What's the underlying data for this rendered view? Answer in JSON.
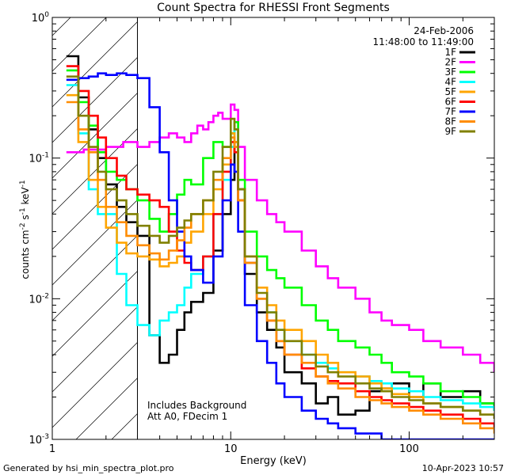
{
  "chart_data": {
    "type": "line",
    "title": "Count Spectra for RHESSI Front Segments",
    "xlabel": "Energy (keV)",
    "ylabel_main": "counts cm",
    "ylabel_units": [
      "-2",
      "-1",
      "-1"
    ],
    "ylabel_parts": [
      "counts cm",
      " s",
      " keV"
    ],
    "xscale": "log",
    "yscale": "log",
    "xlim": [
      1.0,
      300.0
    ],
    "ylim": [
      0.001,
      1.0
    ],
    "x_ticks": [
      {
        "value": 1,
        "label": "1"
      },
      {
        "value": 10,
        "label": "10"
      },
      {
        "value": 100,
        "label": "100"
      }
    ],
    "y_ticks": [
      {
        "value": 0.001,
        "base": "10",
        "exp": "-3"
      },
      {
        "value": 0.01,
        "base": "10",
        "exp": "-2"
      },
      {
        "value": 0.1,
        "base": "10",
        "exp": "-1"
      },
      {
        "value": 1,
        "base": "10",
        "exp": "0"
      }
    ],
    "hatched_region_xmax": 3.0,
    "date": "24-Feb-2006",
    "time_range": "11:48:00 to 11:49:00",
    "annotations": [
      "Includes Background",
      "Att A0, FDecim 1"
    ],
    "legend_position": "top-right",
    "series": [
      {
        "name": "1F",
        "color": "#000000",
        "x": [
          1.2,
          1.4,
          1.6,
          1.8,
          2.0,
          2.3,
          2.6,
          3.0,
          3.5,
          4.0,
          4.5,
          5.0,
          5.5,
          6.0,
          7.0,
          8.0,
          9.0,
          10.0,
          10.5,
          11.0,
          12.0,
          14.0,
          16.0,
          18.0,
          20.0,
          25.0,
          30.0,
          35.0,
          40.0,
          50.0,
          60.0,
          70.0,
          80.0,
          100.0,
          120.0,
          150.0,
          200.0,
          250.0,
          300.0
        ],
        "values": [
          0.53,
          0.27,
          0.16,
          0.1,
          0.065,
          0.045,
          0.035,
          0.028,
          0.0055,
          0.0035,
          0.004,
          0.006,
          0.008,
          0.0095,
          0.011,
          0.022,
          0.04,
          0.07,
          0.13,
          0.06,
          0.015,
          0.008,
          0.006,
          0.0045,
          0.003,
          0.0025,
          0.0018,
          0.002,
          0.0015,
          0.0016,
          0.0022,
          0.0023,
          0.0025,
          0.002,
          0.0025,
          0.002,
          0.0022,
          0.0018,
          0.0016
        ]
      },
      {
        "name": "2F",
        "color": "#ff00ff",
        "x": [
          1.2,
          1.5,
          2.0,
          2.5,
          3.0,
          3.5,
          4.0,
          4.5,
          5.0,
          5.5,
          6.0,
          6.5,
          7.0,
          7.5,
          8.0,
          8.5,
          9.0,
          10.0,
          10.5,
          11.0,
          12.0,
          14.0,
          16.0,
          18.0,
          20.0,
          25.0,
          30.0,
          35.0,
          40.0,
          50.0,
          60.0,
          70.0,
          80.0,
          100.0,
          120.0,
          150.0,
          200.0,
          250.0,
          300.0
        ],
        "values": [
          0.11,
          0.115,
          0.12,
          0.13,
          0.12,
          0.13,
          0.14,
          0.15,
          0.14,
          0.13,
          0.15,
          0.17,
          0.16,
          0.18,
          0.2,
          0.21,
          0.19,
          0.24,
          0.22,
          0.12,
          0.07,
          0.05,
          0.04,
          0.035,
          0.03,
          0.022,
          0.017,
          0.014,
          0.012,
          0.01,
          0.008,
          0.007,
          0.0065,
          0.006,
          0.005,
          0.0045,
          0.004,
          0.0035,
          0.003
        ]
      },
      {
        "name": "3F",
        "color": "#00ff00",
        "x": [
          1.2,
          1.4,
          1.6,
          1.8,
          2.0,
          2.3,
          2.6,
          3.0,
          3.5,
          4.0,
          4.5,
          5.0,
          5.5,
          6.0,
          7.0,
          8.0,
          9.0,
          10.0,
          10.5,
          11.0,
          12.0,
          14.0,
          16.0,
          18.0,
          20.0,
          25.0,
          30.0,
          35.0,
          40.0,
          50.0,
          60.0,
          70.0,
          80.0,
          100.0,
          120.0,
          150.0,
          200.0,
          250.0,
          300.0
        ],
        "values": [
          0.42,
          0.25,
          0.17,
          0.11,
          0.08,
          0.07,
          0.06,
          0.05,
          0.037,
          0.03,
          0.04,
          0.055,
          0.07,
          0.065,
          0.1,
          0.13,
          0.12,
          0.15,
          0.18,
          0.07,
          0.03,
          0.02,
          0.016,
          0.014,
          0.012,
          0.009,
          0.007,
          0.006,
          0.005,
          0.0045,
          0.004,
          0.0035,
          0.003,
          0.0028,
          0.0025,
          0.0022,
          0.002,
          0.0018,
          0.0016
        ]
      },
      {
        "name": "4F",
        "color": "#00ffff",
        "x": [
          1.2,
          1.4,
          1.6,
          1.8,
          2.0,
          2.3,
          2.6,
          3.0,
          3.5,
          4.0,
          4.5,
          5.0,
          5.5,
          6.0,
          7.0,
          8.0,
          9.0,
          10.0,
          10.5,
          11.0,
          12.0,
          14.0,
          16.0,
          18.0,
          20.0,
          25.0,
          30.0,
          35.0,
          40.0,
          50.0,
          60.0,
          70.0,
          80.0,
          100.0,
          120.0,
          150.0,
          200.0,
          250.0,
          300.0
        ],
        "values": [
          0.33,
          0.15,
          0.06,
          0.04,
          0.04,
          0.015,
          0.009,
          0.0065,
          0.0055,
          0.007,
          0.008,
          0.009,
          0.012,
          0.015,
          0.02,
          0.04,
          0.07,
          0.12,
          0.16,
          0.05,
          0.018,
          0.01,
          0.008,
          0.006,
          0.005,
          0.004,
          0.0035,
          0.0032,
          0.003,
          0.0028,
          0.0026,
          0.0025,
          0.0023,
          0.0022,
          0.002,
          0.0019,
          0.0018,
          0.0017,
          0.0016
        ]
      },
      {
        "name": "5F",
        "color": "#ffa500",
        "x": [
          1.2,
          1.4,
          1.6,
          1.8,
          2.0,
          2.3,
          2.6,
          3.0,
          3.5,
          4.0,
          4.5,
          5.0,
          5.5,
          6.0,
          7.0,
          8.0,
          9.0,
          10.0,
          10.5,
          11.0,
          12.0,
          14.0,
          16.0,
          18.0,
          20.0,
          25.0,
          30.0,
          35.0,
          40.0,
          50.0,
          60.0,
          70.0,
          80.0,
          100.0,
          120.0,
          150.0,
          200.0,
          250.0,
          300.0
        ],
        "values": [
          0.28,
          0.13,
          0.07,
          0.045,
          0.032,
          0.025,
          0.021,
          0.02,
          0.019,
          0.017,
          0.018,
          0.02,
          0.025,
          0.03,
          0.04,
          0.06,
          0.09,
          0.15,
          0.13,
          0.05,
          0.02,
          0.012,
          0.009,
          0.007,
          0.006,
          0.005,
          0.004,
          0.0035,
          0.003,
          0.0028,
          0.0025,
          0.0023,
          0.0021,
          0.002,
          0.0018,
          0.0017,
          0.0016,
          0.0015,
          0.0014
        ]
      },
      {
        "name": "6F",
        "color": "#ff0000",
        "x": [
          1.2,
          1.4,
          1.6,
          1.8,
          2.0,
          2.3,
          2.6,
          3.0,
          3.5,
          4.0,
          4.5,
          5.0,
          5.5,
          6.0,
          7.0,
          8.0,
          9.0,
          10.0,
          10.5,
          11.0,
          12.0,
          14.0,
          16.0,
          18.0,
          20.0,
          25.0,
          30.0,
          35.0,
          40.0,
          50.0,
          60.0,
          70.0,
          80.0,
          100.0,
          120.0,
          150.0,
          200.0,
          250.0,
          300.0
        ],
        "values": [
          0.45,
          0.3,
          0.2,
          0.14,
          0.1,
          0.075,
          0.06,
          0.055,
          0.05,
          0.045,
          0.03,
          0.022,
          0.018,
          0.016,
          0.02,
          0.04,
          0.08,
          0.13,
          0.11,
          0.05,
          0.018,
          0.01,
          0.007,
          0.005,
          0.004,
          0.0032,
          0.0028,
          0.0026,
          0.0025,
          0.0022,
          0.002,
          0.0019,
          0.0018,
          0.0017,
          0.0016,
          0.0015,
          0.0014,
          0.0013,
          0.0012
        ]
      },
      {
        "name": "7F",
        "color": "#0000ff",
        "x": [
          1.2,
          1.4,
          1.6,
          1.8,
          2.0,
          2.3,
          2.6,
          3.0,
          3.5,
          4.0,
          4.5,
          5.0,
          5.5,
          6.0,
          7.0,
          8.0,
          9.0,
          10.0,
          10.5,
          11.0,
          12.0,
          14.0,
          16.0,
          18.0,
          20.0,
          25.0,
          30.0,
          35.0,
          40.0,
          50.0,
          60.0,
          70.0,
          80.0,
          100.0,
          120.0,
          150.0,
          200.0,
          250.0,
          300.0
        ],
        "values": [
          0.36,
          0.37,
          0.38,
          0.4,
          0.39,
          0.4,
          0.39,
          0.37,
          0.23,
          0.11,
          0.05,
          0.03,
          0.02,
          0.016,
          0.013,
          0.02,
          0.05,
          0.09,
          0.08,
          0.03,
          0.009,
          0.005,
          0.0035,
          0.0025,
          0.002,
          0.0016,
          0.0014,
          0.0013,
          0.0012,
          0.0011,
          0.0011,
          0.001,
          0.001,
          0.001,
          0.001,
          0.001,
          0.001,
          0.001,
          0.001
        ]
      },
      {
        "name": "8F",
        "color": "#ff8c00",
        "x": [
          1.2,
          1.4,
          1.6,
          1.8,
          2.0,
          2.3,
          2.6,
          3.0,
          3.5,
          4.0,
          4.5,
          5.0,
          5.5,
          6.0,
          7.0,
          8.0,
          9.0,
          10.0,
          10.5,
          11.0,
          12.0,
          14.0,
          16.0,
          18.0,
          20.0,
          25.0,
          30.0,
          35.0,
          40.0,
          50.0,
          60.0,
          70.0,
          80.0,
          100.0,
          120.0,
          150.0,
          200.0,
          250.0,
          300.0
        ],
        "values": [
          0.25,
          0.16,
          0.11,
          0.07,
          0.045,
          0.035,
          0.028,
          0.024,
          0.021,
          0.019,
          0.022,
          0.026,
          0.032,
          0.04,
          0.05,
          0.07,
          0.1,
          0.14,
          0.12,
          0.05,
          0.018,
          0.01,
          0.007,
          0.005,
          0.004,
          0.0035,
          0.0028,
          0.0025,
          0.0023,
          0.002,
          0.0019,
          0.0018,
          0.0017,
          0.0016,
          0.0015,
          0.0014,
          0.0013,
          0.0012,
          0.0011
        ]
      },
      {
        "name": "9F",
        "color": "#808000",
        "x": [
          1.2,
          1.4,
          1.6,
          1.8,
          2.0,
          2.3,
          2.6,
          3.0,
          3.5,
          4.0,
          4.5,
          5.0,
          5.5,
          6.0,
          7.0,
          8.0,
          9.0,
          10.0,
          10.5,
          11.0,
          12.0,
          14.0,
          16.0,
          18.0,
          20.0,
          25.0,
          30.0,
          35.0,
          40.0,
          50.0,
          60.0,
          70.0,
          80.0,
          100.0,
          120.0,
          150.0,
          200.0,
          250.0,
          300.0
        ],
        "values": [
          0.38,
          0.2,
          0.12,
          0.08,
          0.06,
          0.05,
          0.04,
          0.033,
          0.028,
          0.025,
          0.028,
          0.032,
          0.036,
          0.04,
          0.05,
          0.08,
          0.12,
          0.19,
          0.16,
          0.06,
          0.02,
          0.011,
          0.008,
          0.006,
          0.005,
          0.004,
          0.0033,
          0.003,
          0.0028,
          0.0025,
          0.0023,
          0.0022,
          0.002,
          0.0019,
          0.0018,
          0.0017,
          0.0016,
          0.0015,
          0.0014
        ]
      }
    ]
  },
  "footer": {
    "left": "Generated by hsi_min_spectra_plot.pro",
    "right": "10-Apr-2023 10:57"
  }
}
